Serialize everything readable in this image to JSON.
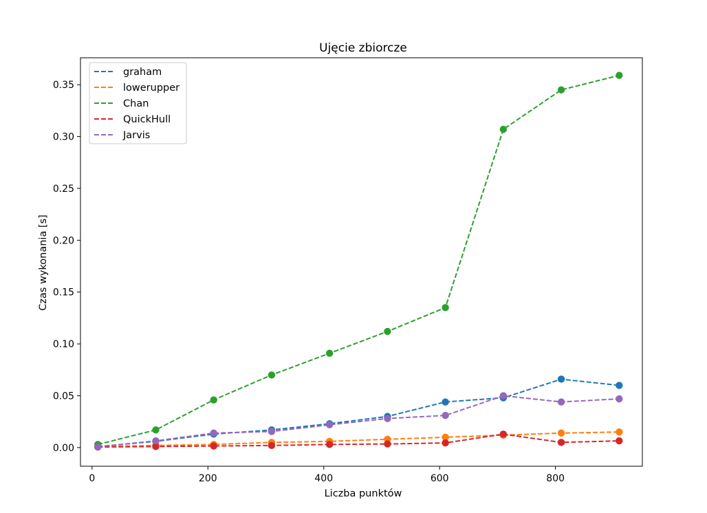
{
  "chart_data": {
    "type": "line",
    "title": "Ujęcie zbiorcze",
    "xlabel": "Liczba punktów",
    "ylabel": "Czas wykonania [s]",
    "xlim": [
      -20,
      950
    ],
    "ylim": [
      -0.018,
      0.376
    ],
    "xticks": [
      0,
      200,
      400,
      600,
      800
    ],
    "xtick_labels": [
      "0",
      "200",
      "400",
      "600",
      "800"
    ],
    "yticks": [
      0.0,
      0.05,
      0.1,
      0.15,
      0.2,
      0.25,
      0.3,
      0.35
    ],
    "ytick_labels": [
      "0.00",
      "0.05",
      "0.10",
      "0.15",
      "0.20",
      "0.25",
      "0.30",
      "0.35"
    ],
    "grid": false,
    "legend_position": "top-left",
    "x": [
      10,
      110,
      210,
      310,
      410,
      510,
      610,
      710,
      810,
      910
    ],
    "series": [
      {
        "name": "graham",
        "color": "#1f77b4",
        "values": [
          0.001,
          0.006,
          0.013,
          0.017,
          0.023,
          0.03,
          0.044,
          0.048,
          0.066,
          0.06
        ]
      },
      {
        "name": "lowerupper",
        "color": "#ff7f0e",
        "values": [
          0.001,
          0.002,
          0.003,
          0.005,
          0.006,
          0.008,
          0.01,
          0.012,
          0.014,
          0.015
        ]
      },
      {
        "name": "Chan",
        "color": "#2ca02c",
        "values": [
          0.003,
          0.017,
          0.046,
          0.07,
          0.091,
          0.112,
          0.135,
          0.307,
          0.345,
          0.359
        ]
      },
      {
        "name": "QuickHull",
        "color": "#d62728",
        "values": [
          0.0005,
          0.001,
          0.0015,
          0.002,
          0.003,
          0.0035,
          0.0045,
          0.013,
          0.005,
          0.0065
        ]
      },
      {
        "name": "Jarvis",
        "color": "#9467bd",
        "values": [
          0.0008,
          0.0065,
          0.014,
          0.0155,
          0.022,
          0.028,
          0.031,
          0.05,
          0.044,
          0.047
        ]
      }
    ]
  }
}
